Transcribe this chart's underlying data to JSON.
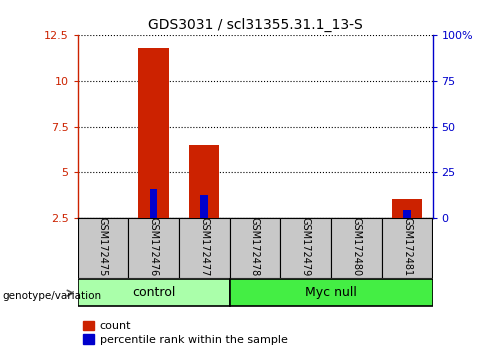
{
  "title": "GDS3031 / scl31355.31.1_13-S",
  "samples": [
    "GSM172475",
    "GSM172476",
    "GSM172477",
    "GSM172478",
    "GSM172479",
    "GSM172480",
    "GSM172481"
  ],
  "count_values": [
    0,
    11.8,
    6.5,
    0,
    0,
    0,
    3.5
  ],
  "percentile_values": [
    0,
    4.1,
    3.75,
    0,
    0,
    0,
    2.95
  ],
  "ylim_left": [
    2.5,
    12.5
  ],
  "ylim_right": [
    0,
    100
  ],
  "yticks_left": [
    2.5,
    5.0,
    7.5,
    10.0,
    12.5
  ],
  "ytick_labels_left": [
    "2.5",
    "5",
    "7.5",
    "10",
    "12.5"
  ],
  "yticks_right": [
    0,
    25,
    50,
    75,
    100
  ],
  "ytick_labels_right": [
    "0",
    "25",
    "50",
    "75",
    "100%"
  ],
  "groups": [
    {
      "label": "control",
      "start": 0,
      "end": 3,
      "color": "#aaffaa"
    },
    {
      "label": "Myc null",
      "start": 3,
      "end": 7,
      "color": "#44ee44"
    }
  ],
  "bar_color_red": "#CC2200",
  "bar_color_blue": "#0000CC",
  "tick_area_bg": "#C8C8C8",
  "bar_width": 0.6,
  "blue_bar_width": 0.15,
  "legend_count_label": "count",
  "legend_percentile_label": "percentile rank within the sample",
  "genotype_label": "genotype/variation",
  "left_axis_color": "#CC2200",
  "right_axis_color": "#0000CC",
  "left_spine_visible": true,
  "right_spine_visible": true
}
